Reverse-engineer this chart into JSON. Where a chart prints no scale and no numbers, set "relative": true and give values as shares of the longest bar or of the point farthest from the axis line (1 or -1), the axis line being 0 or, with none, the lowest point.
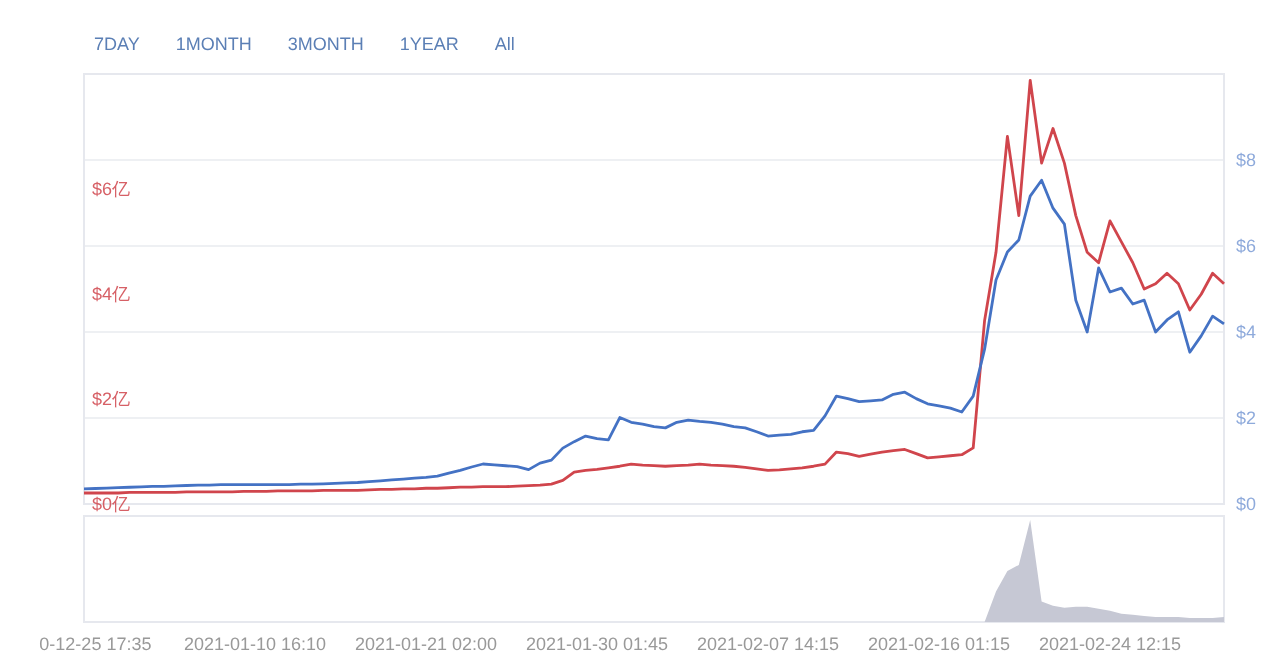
{
  "chart_data": [
    {
      "type": "line",
      "annotations": [
        "7DAY",
        "1MONTH",
        "3MONTH",
        "1YEAR",
        "All"
      ],
      "ylim": [
        0,
        8.2
      ],
      "yticks": [
        {
          "value": 0,
          "label": "$0亿"
        },
        {
          "value": 2,
          "label": "$2亿"
        },
        {
          "value": 4,
          "label": "$4亿"
        },
        {
          "value": 6,
          "label": "$6亿"
        }
      ],
      "y2lim": [
        0,
        10
      ],
      "y2ticks": [
        {
          "value": 0,
          "label": "$0"
        },
        {
          "value": 2,
          "label": "$2"
        },
        {
          "value": 4,
          "label": "$4"
        },
        {
          "value": 6,
          "label": "$6"
        },
        {
          "value": 8,
          "label": "$8"
        }
      ],
      "grid": "y2",
      "tick_labels": "y",
      "series": [
        {
          "color": "#d0454c",
          "values": [
            0.21,
            0.21,
            0.21,
            0.21,
            0.22,
            0.22,
            0.22,
            0.22,
            0.22,
            0.23,
            0.23,
            0.23,
            0.23,
            0.23,
            0.24,
            0.24,
            0.24,
            0.25,
            0.25,
            0.25,
            0.25,
            0.26,
            0.26,
            0.26,
            0.26,
            0.27,
            0.28,
            0.28,
            0.29,
            0.29,
            0.3,
            0.3,
            0.31,
            0.32,
            0.32,
            0.33,
            0.33,
            0.33,
            0.34,
            0.35,
            0.36,
            0.38,
            0.45,
            0.61,
            0.64,
            0.66,
            0.69,
            0.72,
            0.76,
            0.74,
            0.73,
            0.72,
            0.73,
            0.74,
            0.76,
            0.74,
            0.73,
            0.72,
            0.7,
            0.67,
            0.64,
            0.65,
            0.67,
            0.69,
            0.72,
            0.76,
            0.99,
            0.96,
            0.91,
            0.95,
            0.99,
            1.02,
            1.04,
            0.96,
            0.88,
            0.9,
            0.92,
            0.94,
            1.07,
            3.5,
            4.8,
            7.01,
            5.5,
            8.08,
            6.5,
            7.16,
            6.5,
            5.5,
            4.8,
            4.6,
            5.4,
            5.0,
            4.6,
            4.1,
            4.2,
            4.4,
            4.2,
            3.7,
            4.0,
            4.4,
            4.2
          ]
        },
        {
          "color": "#4472c4",
          "axis": "y2",
          "values": [
            0.35,
            0.36,
            0.37,
            0.38,
            0.39,
            0.4,
            0.41,
            0.41,
            0.42,
            0.43,
            0.44,
            0.44,
            0.45,
            0.45,
            0.45,
            0.45,
            0.45,
            0.45,
            0.45,
            0.46,
            0.46,
            0.47,
            0.48,
            0.49,
            0.5,
            0.52,
            0.54,
            0.56,
            0.58,
            0.6,
            0.62,
            0.65,
            0.72,
            0.78,
            0.86,
            0.93,
            0.91,
            0.89,
            0.87,
            0.8,
            0.95,
            1.02,
            1.3,
            1.45,
            1.58,
            1.52,
            1.49,
            2.01,
            1.9,
            1.86,
            1.8,
            1.77,
            1.9,
            1.95,
            1.92,
            1.9,
            1.86,
            1.8,
            1.77,
            1.68,
            1.58,
            1.6,
            1.62,
            1.68,
            1.71,
            2.05,
            2.51,
            2.45,
            2.38,
            2.4,
            2.42,
            2.55,
            2.6,
            2.45,
            2.33,
            2.28,
            2.23,
            2.14,
            2.51,
            3.6,
            5.21,
            5.86,
            6.14,
            7.16,
            7.53,
            6.88,
            6.51,
            4.74,
            4.0,
            5.49,
            4.93,
            5.02,
            4.65,
            4.74,
            4.0,
            4.28,
            4.47,
            3.53,
            3.91,
            4.37,
            4.19
          ]
        }
      ]
    },
    {
      "type": "area",
      "relative": true,
      "categories": [
        null,
        "0-12-25 17:35",
        null,
        null,
        null,
        null,
        null,
        null,
        null,
        null,
        null,
        null,
        null,
        null,
        null,
        "2021-01-10 16:10",
        null,
        null,
        null,
        null,
        null,
        null,
        null,
        null,
        null,
        null,
        null,
        null,
        null,
        null,
        "2021-01-21 02:00",
        null,
        null,
        null,
        null,
        null,
        null,
        null,
        null,
        null,
        null,
        null,
        null,
        null,
        null,
        "2021-01-30 01:45",
        null,
        null,
        null,
        null,
        null,
        null,
        null,
        null,
        null,
        null,
        null,
        null,
        null,
        null,
        "2021-02-07 14:15",
        null,
        null,
        null,
        null,
        null,
        null,
        null,
        null,
        null,
        null,
        null,
        null,
        null,
        null,
        "2021-02-16 01:15",
        null,
        null,
        null,
        null,
        null,
        null,
        null,
        null,
        null,
        null,
        null,
        null,
        null,
        null,
        "2021-02-24 12:15",
        null,
        null,
        null,
        null,
        null,
        null,
        null,
        null,
        null,
        null
      ],
      "tick_labels": "x",
      "series": [
        {
          "color": "#c6c8d4",
          "values": [
            0,
            0,
            0,
            0,
            0,
            0,
            0,
            0,
            0,
            0,
            0,
            0,
            0,
            0,
            0,
            0,
            0,
            0,
            0,
            0,
            0,
            0,
            0,
            0,
            0,
            0,
            0,
            0,
            0,
            0,
            0,
            0,
            0,
            0,
            0,
            0,
            0,
            0,
            0,
            0,
            0,
            0,
            0,
            0,
            0,
            0,
            0,
            0,
            0,
            0,
            0,
            0,
            0,
            0,
            0,
            0,
            0,
            0,
            0,
            0,
            0,
            0,
            0,
            0,
            0,
            0,
            0,
            0,
            0,
            0,
            0,
            0,
            0,
            0,
            0,
            0,
            0,
            0,
            0,
            0.0,
            0.3,
            0.5,
            0.56,
            1.0,
            0.2,
            0.16,
            0.14,
            0.15,
            0.15,
            0.13,
            0.11,
            0.08,
            0.07,
            0.06,
            0.05,
            0.05,
            0.05,
            0.04,
            0.04,
            0.04,
            0.05
          ]
        }
      ]
    }
  ]
}
